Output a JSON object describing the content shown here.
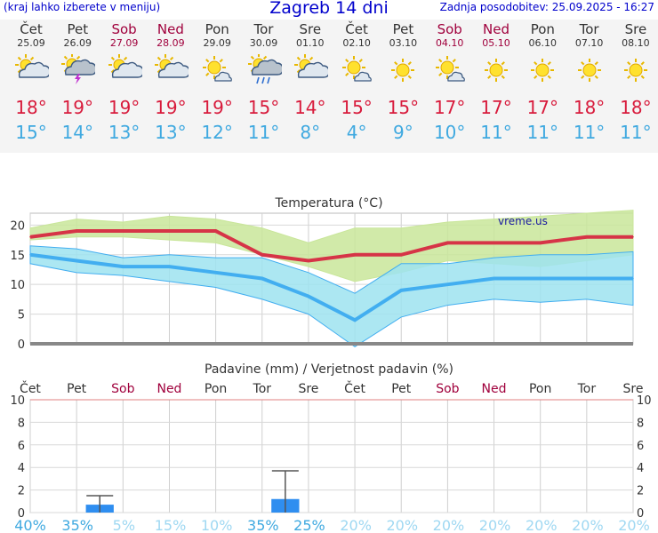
{
  "header": {
    "left_note": "(kraj lahko izberete v meniju)",
    "title": "Zagreb 14 dni",
    "updated": "Zadnja posodobitev: 25.09.2025 - 16:27"
  },
  "days": [
    {
      "name": "Čet",
      "date": "25.09",
      "weekend": false,
      "icon": "partly-cloudy-icon",
      "max": "18°",
      "min": "15°"
    },
    {
      "name": "Pet",
      "date": "26.09",
      "weekend": false,
      "icon": "thunderstorm-icon",
      "max": "19°",
      "min": "14°"
    },
    {
      "name": "Sob",
      "date": "27.09",
      "weekend": true,
      "icon": "partly-cloudy-icon",
      "max": "19°",
      "min": "13°"
    },
    {
      "name": "Ned",
      "date": "28.09",
      "weekend": true,
      "icon": "partly-cloudy-icon",
      "max": "19°",
      "min": "13°"
    },
    {
      "name": "Pon",
      "date": "29.09",
      "weekend": false,
      "icon": "mostly-sunny-icon",
      "max": "19°",
      "min": "12°"
    },
    {
      "name": "Tor",
      "date": "30.09",
      "weekend": false,
      "icon": "rain-shower-icon",
      "max": "15°",
      "min": "11°"
    },
    {
      "name": "Sre",
      "date": "01.10",
      "weekend": false,
      "icon": "partly-cloudy-icon",
      "max": "14°",
      "min": "8°"
    },
    {
      "name": "Čet",
      "date": "02.10",
      "weekend": false,
      "icon": "mostly-sunny-icon",
      "max": "15°",
      "min": "4°"
    },
    {
      "name": "Pet",
      "date": "03.10",
      "weekend": false,
      "icon": "sunny-icon",
      "max": "15°",
      "min": "9°"
    },
    {
      "name": "Sob",
      "date": "04.10",
      "weekend": true,
      "icon": "mostly-sunny-icon",
      "max": "17°",
      "min": "10°"
    },
    {
      "name": "Ned",
      "date": "05.10",
      "weekend": true,
      "icon": "sunny-icon",
      "max": "17°",
      "min": "11°"
    },
    {
      "name": "Pon",
      "date": "06.10",
      "weekend": false,
      "icon": "sunny-icon",
      "max": "17°",
      "min": "11°"
    },
    {
      "name": "Tor",
      "date": "07.10",
      "weekend": false,
      "icon": "sunny-icon",
      "max": "18°",
      "min": "11°"
    },
    {
      "name": "Sre",
      "date": "08.10",
      "weekend": false,
      "icon": "sunny-icon",
      "max": "18°",
      "min": "11°"
    }
  ],
  "chart_data": [
    {
      "type": "line",
      "title": "Temperatura (°C)",
      "watermark": "vreme.us",
      "ylim": [
        0,
        22
      ],
      "yticks": [
        0,
        5,
        10,
        15,
        20
      ],
      "grid": true,
      "colors": {
        "max": "#d63447",
        "min": "#42aef0",
        "max_band": "#c9e69a",
        "min_band": "#9ee3f0",
        "zero_line": "#888888"
      },
      "series": [
        {
          "key": "max",
          "values": [
            18,
            19,
            19,
            19,
            19,
            15,
            14,
            15,
            15,
            17,
            17,
            17,
            18,
            18
          ]
        },
        {
          "key": "min",
          "values": [
            15,
            14,
            13,
            13,
            12,
            11,
            8,
            4,
            9,
            10,
            11,
            11,
            11,
            11
          ]
        }
      ],
      "bands": [
        {
          "key": "max_band",
          "upper": [
            19.5,
            21,
            20.5,
            21.5,
            21,
            19.5,
            17,
            19.5,
            19.5,
            20.5,
            21,
            21.5,
            22,
            22.5
          ],
          "lower": [
            17.5,
            18,
            18,
            17.5,
            17,
            15,
            13,
            10.5,
            12,
            14,
            13.5,
            13,
            14,
            15
          ]
        },
        {
          "key": "min_band",
          "upper": [
            16.5,
            16,
            14.5,
            15,
            14.5,
            14.5,
            12,
            8.5,
            13.5,
            13.5,
            14.5,
            15,
            15,
            15.5
          ],
          "lower": [
            13.5,
            12,
            11.5,
            10.5,
            9.5,
            7.5,
            5,
            -0.5,
            4.5,
            6.5,
            7.5,
            7,
            7.5,
            6.5
          ]
        }
      ]
    },
    {
      "type": "bar",
      "title": "Padavine (mm) / Verjetnost padavin (%)",
      "categories": [
        "Čet",
        "Pet",
        "Sob",
        "Ned",
        "Pon",
        "Tor",
        "Sre",
        "Čet",
        "Pet",
        "Sob",
        "Ned",
        "Pon",
        "Tor",
        "Sre"
      ],
      "weekend": [
        false,
        false,
        true,
        true,
        false,
        false,
        false,
        false,
        false,
        true,
        true,
        false,
        false,
        false
      ],
      "ylim": [
        0,
        10
      ],
      "yticks": [
        0,
        2,
        4,
        6,
        8,
        10
      ],
      "values": [
        0,
        0.7,
        0,
        0,
        0,
        1.2,
        0,
        0,
        0,
        0,
        0,
        0,
        0,
        0
      ],
      "error_high": [
        0,
        1.5,
        0,
        0,
        0,
        3.7,
        0,
        0,
        0,
        0,
        0,
        0,
        0,
        0
      ],
      "probability": [
        "40%",
        "35%",
        "5%",
        "15%",
        "10%",
        "35%",
        "25%",
        "20%",
        "20%",
        "20%",
        "20%",
        "20%",
        "20%",
        "20%"
      ],
      "probability_values": [
        40,
        35,
        5,
        15,
        10,
        35,
        25,
        20,
        20,
        20,
        20,
        20,
        20,
        20
      ],
      "colors": {
        "bar": "#2f8ef0",
        "error": "#555555",
        "prob_strong": "#3fa9e0",
        "prob_weak": "#9fd8f2"
      }
    }
  ]
}
